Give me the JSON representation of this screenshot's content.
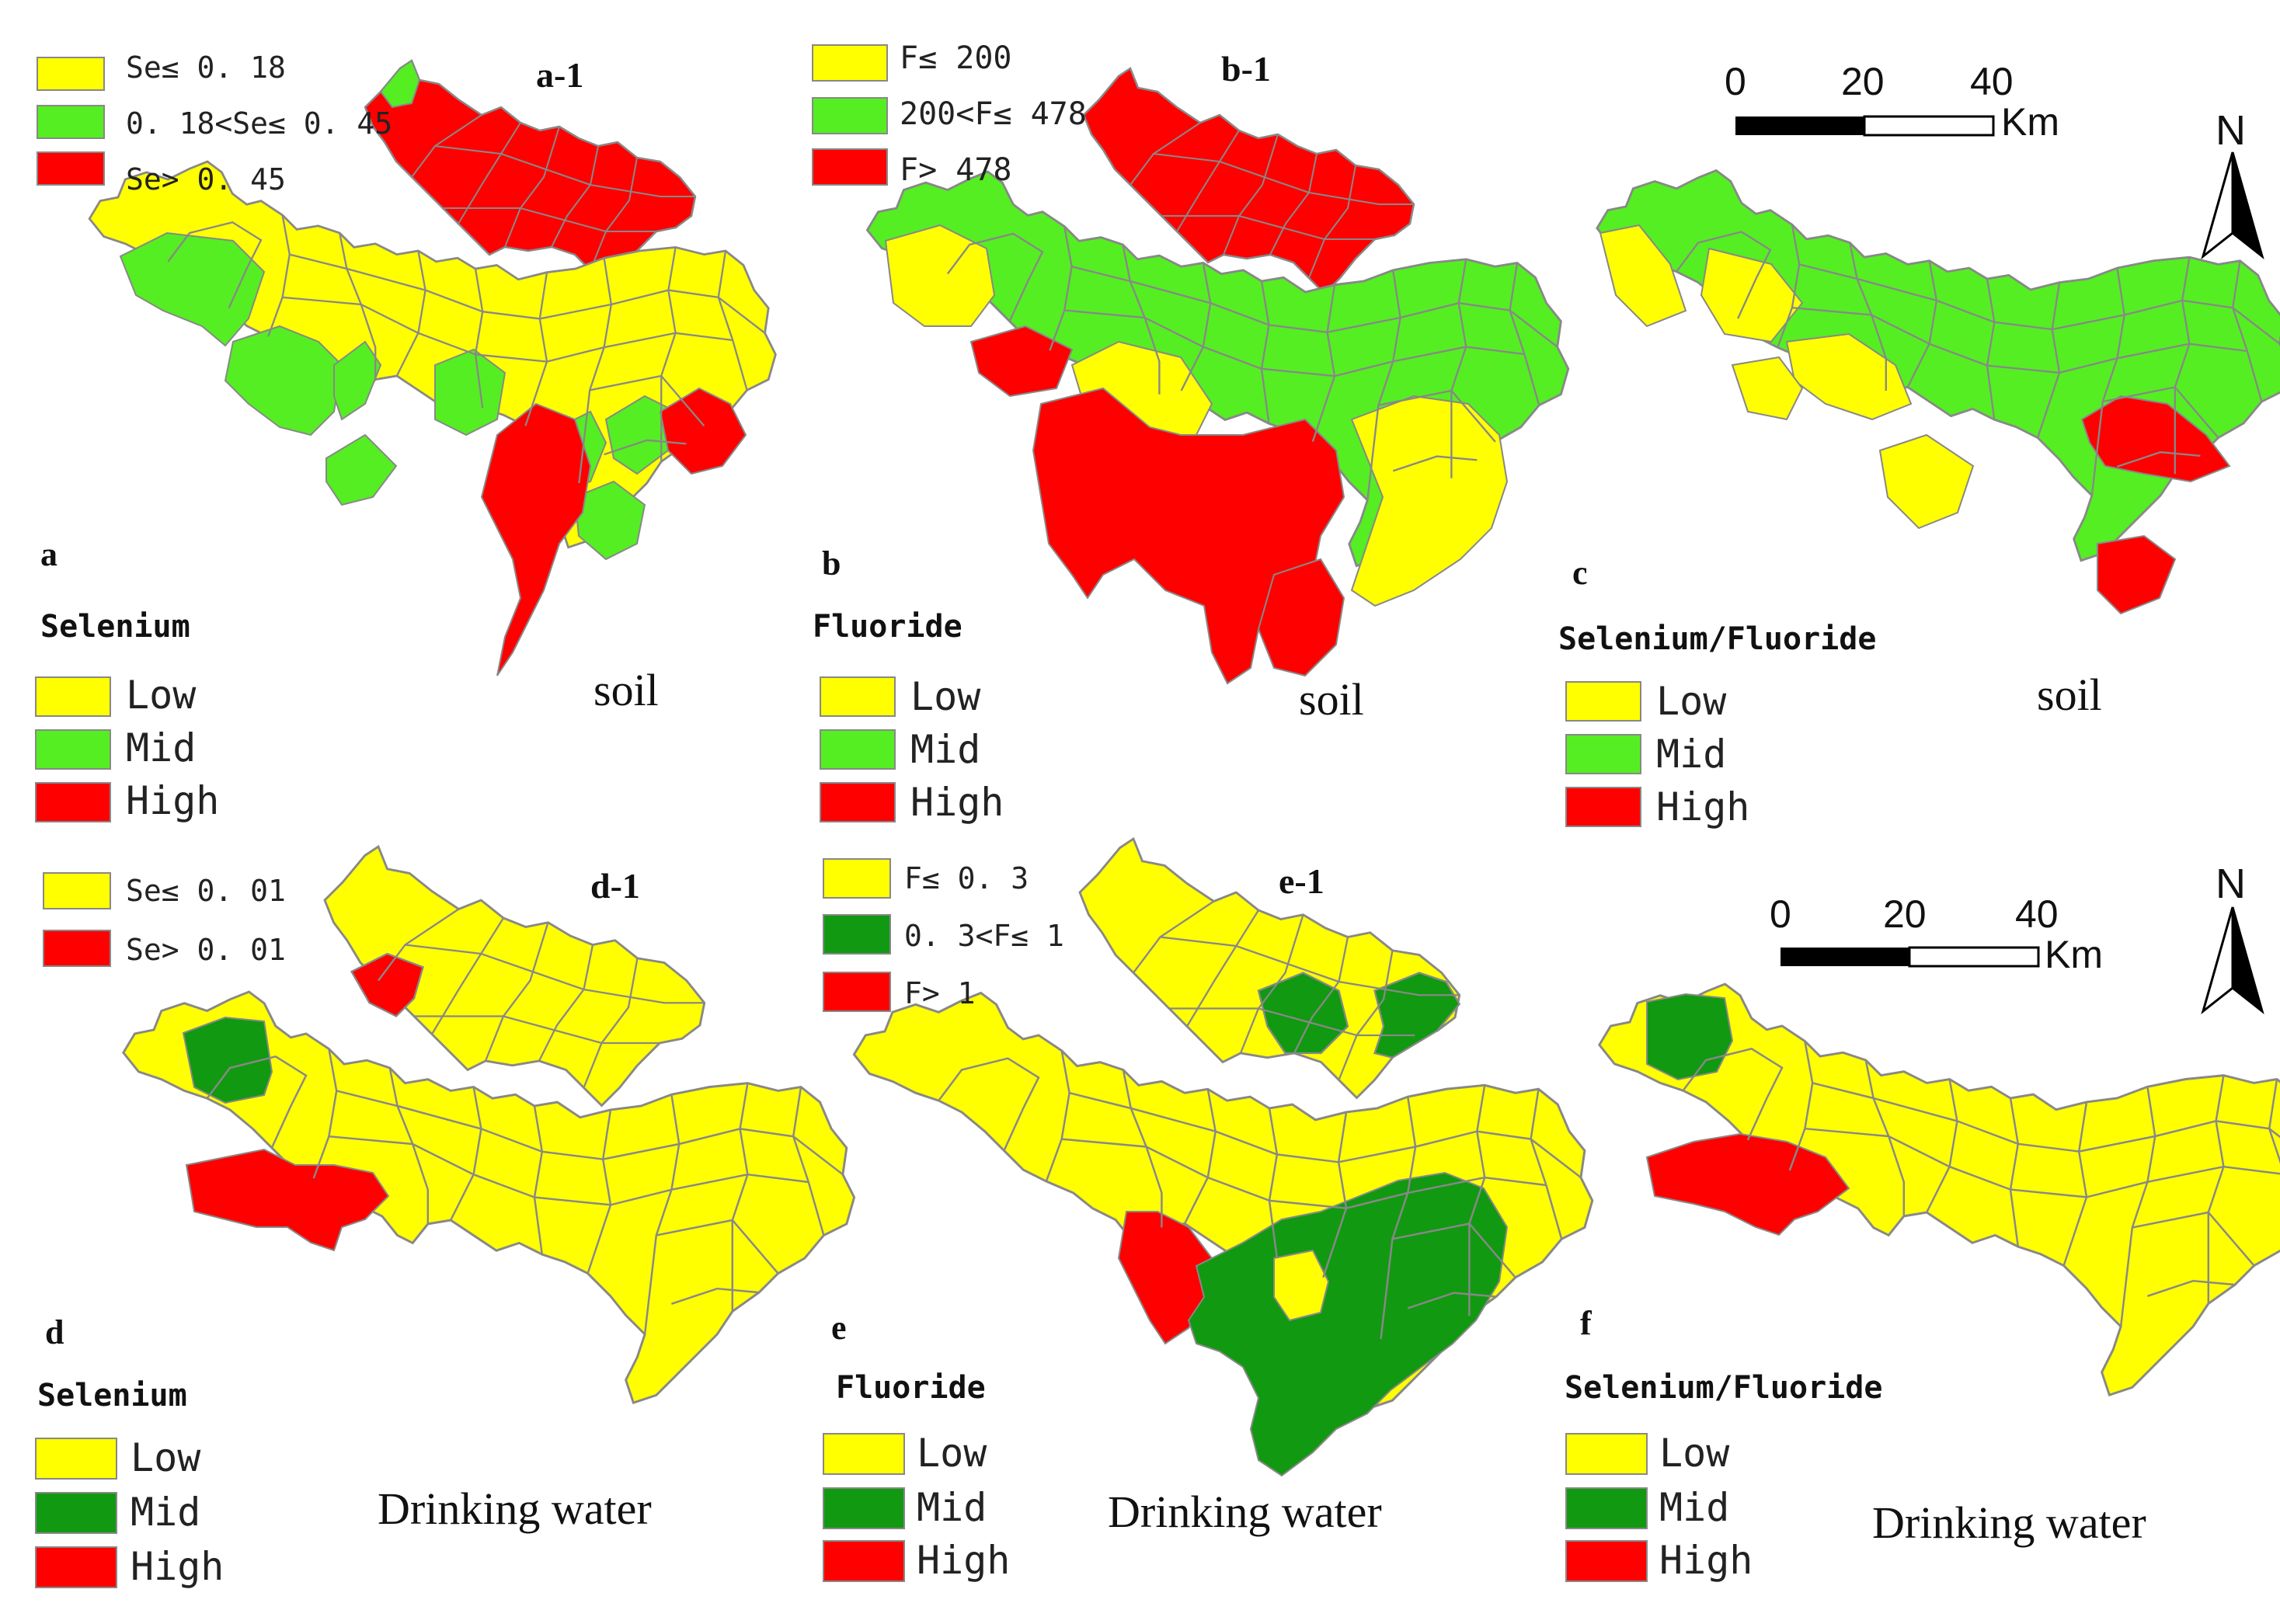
{
  "colors": {
    "low_soil": "#ffff00",
    "mid_soil": "#55ee22",
    "high": "#ff0000",
    "mid_water": "#119911",
    "border": "#888888"
  },
  "panels": [
    {
      "letter": "a",
      "element": "Selenium",
      "medium": "soil",
      "inset_label": "a-1",
      "inset_legend": [
        {
          "label": "Se≤ 0. 18",
          "color": "low"
        },
        {
          "label": "0. 18<Se≤ 0. 45",
          "color": "mid"
        },
        {
          "label": "Se> 0. 45",
          "color": "high"
        }
      ],
      "legend": [
        {
          "label": "Low",
          "color": "low"
        },
        {
          "label": "Mid",
          "color": "mid"
        },
        {
          "label": "High",
          "color": "high"
        }
      ]
    },
    {
      "letter": "b",
      "element": "Fluoride",
      "medium": "soil",
      "inset_label": "b-1",
      "inset_legend": [
        {
          "label": "F≤ 200",
          "color": "low"
        },
        {
          "label": "200<F≤ 478",
          "color": "mid"
        },
        {
          "label": "F> 478",
          "color": "high"
        }
      ],
      "legend": [
        {
          "label": "Low",
          "color": "low"
        },
        {
          "label": "Mid",
          "color": "mid"
        },
        {
          "label": "High",
          "color": "high"
        }
      ]
    },
    {
      "letter": "c",
      "element": "Selenium/Fluoride",
      "medium": "soil",
      "legend": [
        {
          "label": "Low",
          "color": "low"
        },
        {
          "label": "Mid",
          "color": "mid"
        },
        {
          "label": "High",
          "color": "high"
        }
      ]
    },
    {
      "letter": "d",
      "element": "Selenium",
      "medium": "Drinking water",
      "inset_label": "d-1",
      "inset_legend": [
        {
          "label": "Se≤ 0. 01",
          "color": "low"
        },
        {
          "label": "Se> 0. 01",
          "color": "high"
        }
      ],
      "legend": [
        {
          "label": "Low",
          "color": "low"
        },
        {
          "label": "Mid",
          "color": "mid"
        },
        {
          "label": "High",
          "color": "high"
        }
      ]
    },
    {
      "letter": "e",
      "element": "Fluoride",
      "medium": "Drinking water",
      "inset_label": "e-1",
      "inset_legend": [
        {
          "label": "F≤ 0. 3",
          "color": "low"
        },
        {
          "label": "0. 3<F≤ 1",
          "color": "mid"
        },
        {
          "label": "F> 1",
          "color": "high"
        }
      ],
      "legend": [
        {
          "label": "Low",
          "color": "low"
        },
        {
          "label": "Mid",
          "color": "mid"
        },
        {
          "label": "High",
          "color": "high"
        }
      ]
    },
    {
      "letter": "f",
      "element": "Selenium/Fluoride",
      "medium": "Drinking water",
      "legend": [
        {
          "label": "Low",
          "color": "low"
        },
        {
          "label": "Mid",
          "color": "mid"
        },
        {
          "label": "High",
          "color": "high"
        }
      ]
    }
  ],
  "scale_bar": {
    "ticks": [
      "0",
      "20",
      "40"
    ],
    "unit": "Km"
  },
  "north_arrow": {
    "label": "N"
  }
}
